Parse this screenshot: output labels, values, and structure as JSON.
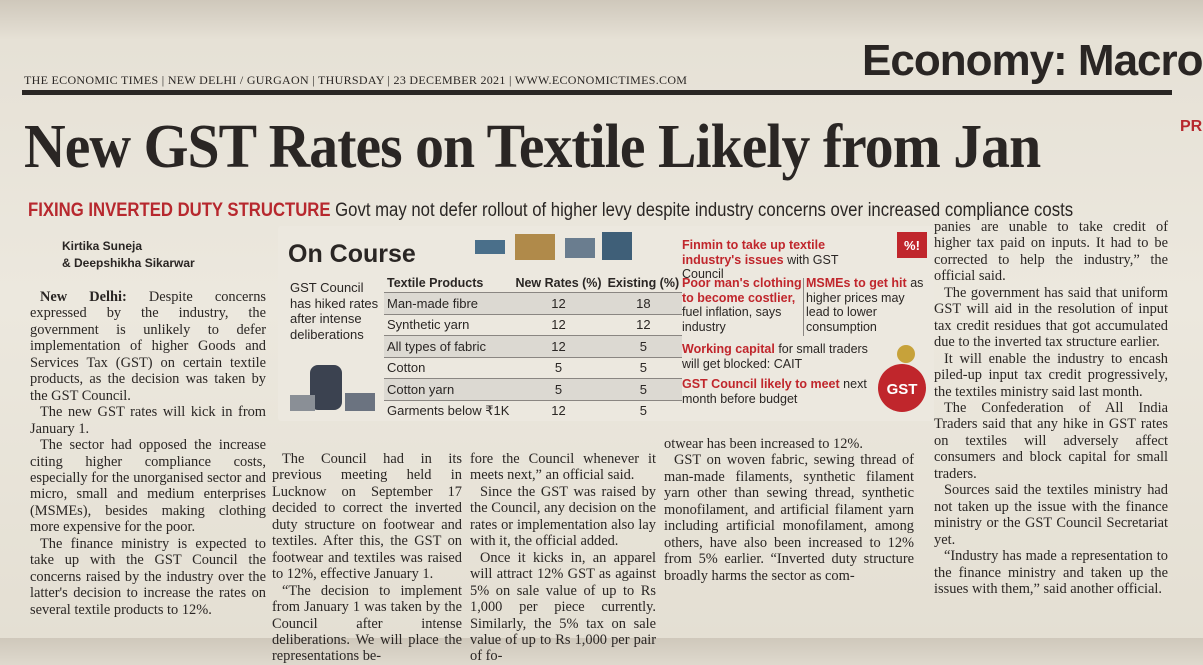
{
  "masthead": "THE ECONOMIC TIMES | NEW DELHI / GURGAON | THURSDAY | 23 DECEMBER 2021 | WWW.ECONOMICTIMES.COM",
  "section": "Economy: Macro",
  "edge_fragment": "PR",
  "headline": "New GST Rates on Textile Likely from Jan",
  "kicker": "FIXING INVERTED DUTY STRUCTURE",
  "deck": "Govt may not defer rollout of higher levy despite industry concerns over increased compliance costs",
  "byline": [
    "Kirtika Suneja",
    "& Deepshikha Sikarwar"
  ],
  "box": {
    "title": "On Course",
    "note": "GST Council has hiked rates after intense deliberations",
    "table": {
      "header": [
        "Textile Products",
        "New Rates (%)",
        "Existing (%)"
      ],
      "rows": [
        [
          "Man-made fibre",
          12,
          18
        ],
        [
          "Synthetic yarn",
          12,
          12
        ],
        [
          "All types of fabric",
          12,
          5
        ],
        [
          "Cotton",
          5,
          5
        ],
        [
          "Cotton yarn",
          5,
          5
        ],
        [
          "Garments below ₹1K",
          12,
          5
        ]
      ]
    },
    "items": [
      {
        "highlight": "Finmin to take up textile industry's issues",
        "text": "with GST Council"
      },
      {
        "highlight": "Poor man's clothing to become costlier,",
        "text": "fuel inflation, says industry"
      },
      {
        "highlight": "MSMEs to get hit",
        "text": "as higher prices may lead to lower consumption"
      },
      {
        "highlight": "Working capital",
        "text": "for small traders will get blocked: CAIT"
      },
      {
        "highlight": "GST Council likely to meet",
        "text": "next month before budget"
      }
    ],
    "icon_labels": [
      "%!",
      "GST"
    ]
  },
  "dateline": "New Delhi:",
  "columns": [
    [
      "Despite concerns expressed by the industry, the government is unlikely to defer implementation of higher Goods and Services Tax (GST) on certain textile products, as the decision was taken by the GST Council.",
      "The new GST rates will kick in from January 1.",
      "The sector had opposed the increase citing higher compliance costs, especially for the unorganised sector and micro, small and medium enterprises (MSMEs), besides making clothing more expensive for the poor.",
      "The finance ministry is expected to take up with the GST Council the concerns raised by the industry over the latter's decision to increase the rates on several textile products to 12%."
    ],
    [
      "The Council had in its previous meeting held in Lucknow on September 17 decided to correct the inverted duty structure on footwear and textiles. After this, the GST on footwear and textiles was raised to 12%, effective January 1.",
      "“The decision to implement from January 1 was taken by the Council after intense deliberations. We will place the representations be-"
    ],
    [
      "fore the Council whenever it meets next,” an official said.",
      "Since the GST was raised by the Council, any decision on the rates or implementation also lay with it, the official added.",
      "Once it kicks in, an apparel will attract 12% GST as against 5% on sale value of up to Rs 1,000 per piece currently. Similarly, the 5% tax on sale value of up to Rs 1,000 per pair of fo-"
    ],
    [
      "otwear has been increased to 12%.",
      "GST on woven fabric, sewing thread of man-made filaments, synthetic filament yarn other than sewing thread, synthetic monofilament, and artificial filament yarn including artificial monofilament, among others, have also been increased to 12% from 5% earlier. “Inverted duty structure broadly harms the sector as com-"
    ],
    [
      "panies are unable to take credit of higher tax paid on inputs. It had to be corrected to help the industry,” the official said.",
      "The government has said that uniform GST will aid in the resolution of input tax credit residues that got accumulated due to the inverted tax structure earlier.",
      "It will enable the industry to encash piled-up input tax credit progressively, the textiles ministry said last month.",
      "The Confederation of All India Traders said that any hike in GST rates on textiles will adversely affect consumers and block capital for small traders.",
      "Sources said the textiles ministry had not taken up the issue with the finance ministry or the GST Council Secretariat yet.",
      "“Industry has made a representation to the finance ministry and taken up the issues with them,” said another official."
    ]
  ]
}
